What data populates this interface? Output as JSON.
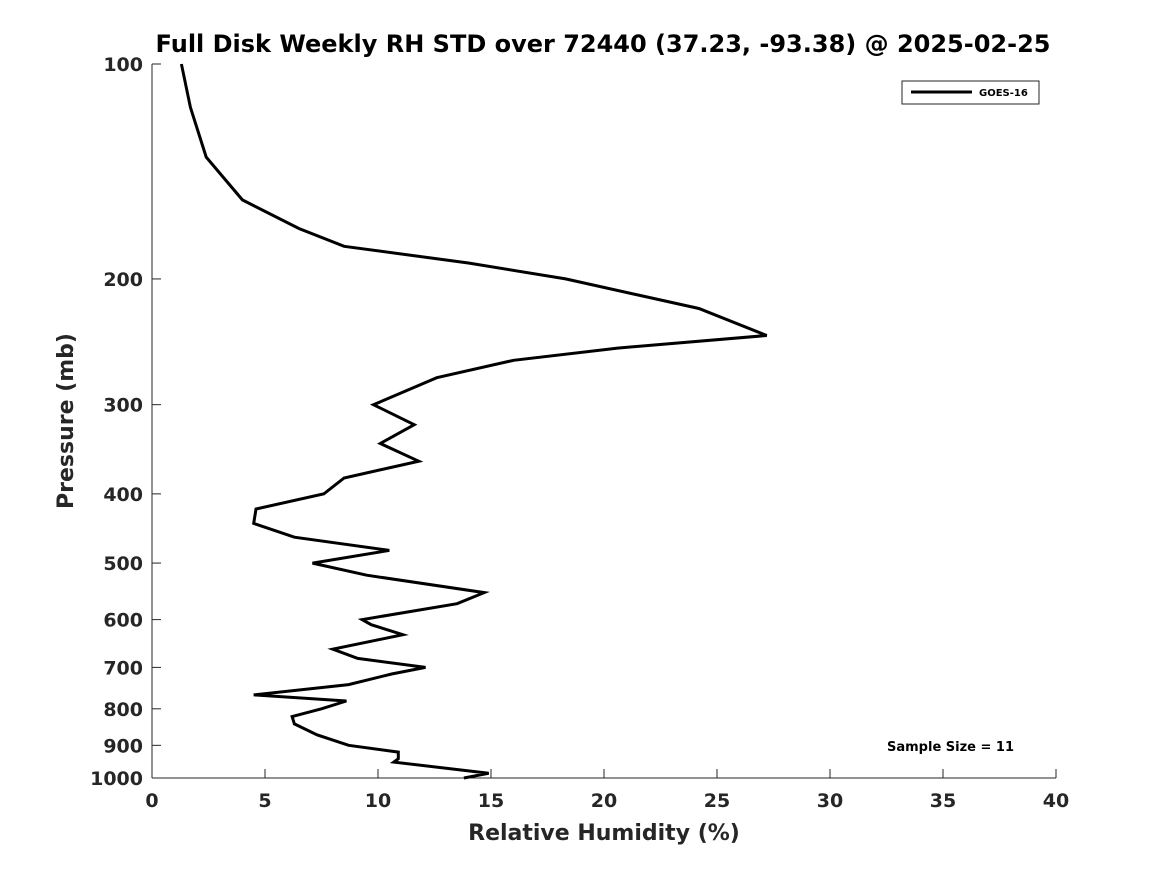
{
  "chart_data": {
    "type": "line",
    "title": "Full Disk Weekly RH STD over 72440 (37.23, -93.38) @ 2025-02-25",
    "xlabel": "Relative Humidity (%)",
    "ylabel": "Pressure (mb)",
    "xlim": [
      0,
      40
    ],
    "ylim": [
      1000,
      100
    ],
    "y_scale": "log",
    "xticks": [
      0,
      5,
      10,
      15,
      20,
      25,
      30,
      35,
      40
    ],
    "yticks": [
      100,
      200,
      300,
      400,
      500,
      600,
      700,
      800,
      900,
      1000
    ],
    "legend_position": "top-right",
    "annotation": "Sample Size = 11",
    "series": [
      {
        "name": "GOES-16",
        "color": "#000000",
        "points": [
          [
            1.3,
            100
          ],
          [
            1.7,
            115
          ],
          [
            2.4,
            135
          ],
          [
            4.0,
            155
          ],
          [
            6.5,
            170
          ],
          [
            8.5,
            180
          ],
          [
            14.0,
            190
          ],
          [
            18.3,
            200
          ],
          [
            24.2,
            220
          ],
          [
            27.2,
            240
          ],
          [
            20.6,
            250
          ],
          [
            16.0,
            260
          ],
          [
            12.6,
            275
          ],
          [
            9.8,
            300
          ],
          [
            11.6,
            320
          ],
          [
            10.1,
            340
          ],
          [
            11.8,
            360
          ],
          [
            8.5,
            380
          ],
          [
            7.6,
            400
          ],
          [
            4.6,
            420
          ],
          [
            4.5,
            440
          ],
          [
            6.3,
            460
          ],
          [
            10.5,
            480
          ],
          [
            7.1,
            500
          ],
          [
            9.5,
            520
          ],
          [
            14.7,
            550
          ],
          [
            13.5,
            570
          ],
          [
            9.3,
            600
          ],
          [
            9.7,
            610
          ],
          [
            11.1,
            630
          ],
          [
            8.0,
            660
          ],
          [
            9.1,
            680
          ],
          [
            12.1,
            700
          ],
          [
            10.6,
            715
          ],
          [
            8.7,
            740
          ],
          [
            4.5,
            765
          ],
          [
            8.6,
            780
          ],
          [
            7.5,
            800
          ],
          [
            6.2,
            820
          ],
          [
            6.3,
            840
          ],
          [
            7.3,
            870
          ],
          [
            8.7,
            900
          ],
          [
            10.9,
            920
          ],
          [
            10.9,
            940
          ],
          [
            10.7,
            950
          ],
          [
            14.9,
            985
          ],
          [
            13.8,
            1000
          ]
        ]
      }
    ]
  }
}
